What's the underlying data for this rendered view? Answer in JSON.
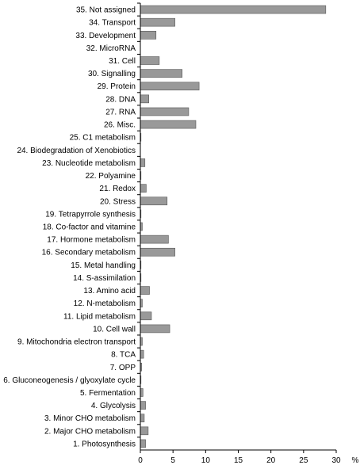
{
  "chart_data": {
    "type": "bar",
    "orientation": "horizontal",
    "categories": [
      "35. Not assigned",
      "34. Transport",
      "33. Development",
      "32. MicroRNA",
      "31. Cell",
      "30. Signalling",
      "29. Protein",
      "28. DNA",
      "27. RNA",
      "26. Misc.",
      "25. C1 metabolism",
      "24. Biodegradation of Xenobiotics",
      "23. Nucleotide metabolism",
      "22. Polyamine",
      "21. Redox",
      "20. Stress",
      "19. Tetrapyrrole synthesis",
      "18. Co-factor and vitamine",
      "17. Hormone metabolism",
      "16. Secondary metabolism",
      "15. Metal handling",
      "14. S-assimilation",
      "13. Amino acid",
      "12. N-metabolism",
      "11. Lipid metabolism",
      "10. Cell wall",
      "9. Mitochondria electron transport",
      "8. TCA",
      "7. OPP",
      "6. Gluconeogenesis / glyoxylate cycle",
      "5. Fermentation",
      "4. Glycolysis",
      "3. Minor CHO metabolism",
      "2. Major CHO metabolism",
      "1. Photosynthesis"
    ],
    "values": [
      28.4,
      5.3,
      2.4,
      0,
      2.9,
      6.4,
      9.0,
      1.3,
      7.4,
      8.5,
      0.1,
      0,
      0.7,
      0.1,
      0.9,
      4.1,
      0.1,
      0.3,
      4.3,
      5.3,
      0.1,
      0.1,
      1.4,
      0.3,
      1.7,
      4.5,
      0.3,
      0.5,
      0.2,
      0.1,
      0.4,
      0.8,
      0.6,
      1.2,
      0.8
    ],
    "xlim": [
      0,
      30
    ],
    "xticks": [
      "0",
      "5",
      "10",
      "15",
      "20",
      "25",
      "30"
    ],
    "xlabel": "%",
    "ylabel": "",
    "title": "",
    "grid": false,
    "bar_color": "#999999"
  }
}
